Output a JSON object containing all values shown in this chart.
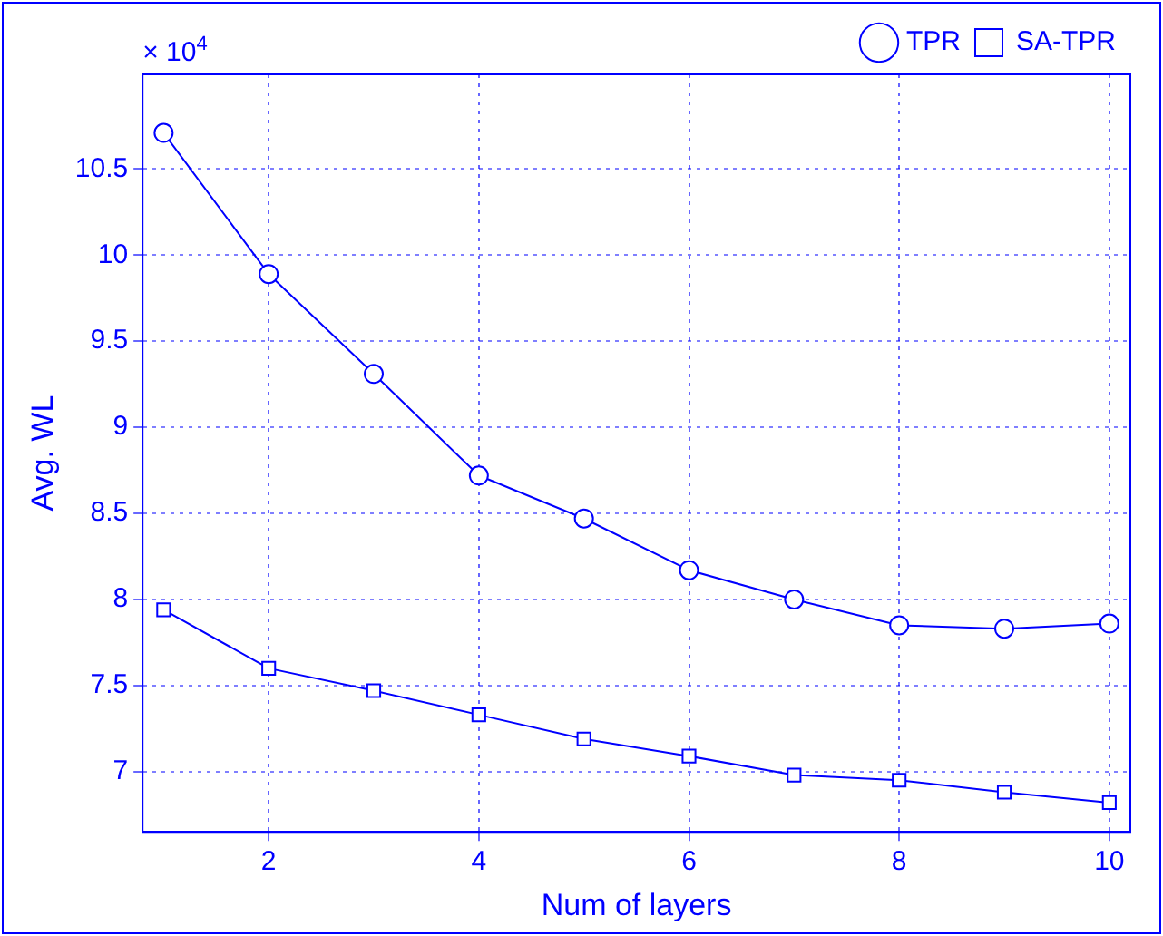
{
  "chart_data": {
    "type": "line",
    "xlabel": "Num of layers",
    "ylabel": "Avg. WL",
    "annotations": [
      "× 10$^{4}$"
    ],
    "x": [
      1,
      2,
      3,
      4,
      5,
      6,
      7,
      8,
      9,
      10
    ],
    "series": [
      {
        "name": "TPR",
        "color": "#0000ff",
        "marker": "circle",
        "values": [
          10.71,
          9.89,
          9.31,
          8.72,
          8.47,
          8.17,
          8.0,
          7.85,
          7.83,
          7.86
        ]
      },
      {
        "name": "SA-TPR",
        "color": "#0000ff",
        "marker": "square",
        "values": [
          7.94,
          7.6,
          7.47,
          7.33,
          7.19,
          7.09,
          6.98,
          6.95,
          6.88,
          6.82
        ]
      }
    ],
    "xlim": [
      0.8,
      10.2
    ],
    "xticks": [
      2,
      4,
      6,
      8,
      10
    ],
    "ylim": [
      6.65,
      11.05
    ],
    "yticks": [
      7,
      7.5,
      8,
      8.5,
      9,
      9.5,
      10,
      10.5
    ],
    "grid": true,
    "line_style": "solid",
    "legend": "top right"
  }
}
